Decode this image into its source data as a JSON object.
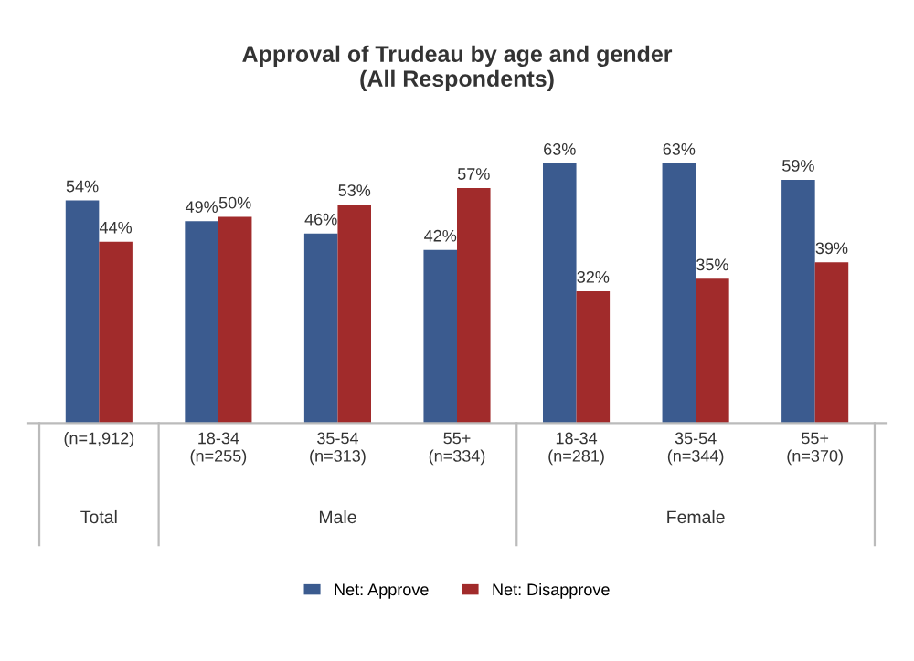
{
  "chart_data": {
    "type": "bar",
    "title": "Approval of Trudeau by age and gender\n(All Respondents)",
    "categories": [
      "(n=1,912)",
      "18-34\n(n=255)",
      "35-54\n(n=313)",
      "55+\n(n=334)",
      "18-34\n(n=281)",
      "35-54\n(n=344)",
      "55+\n(n=370)"
    ],
    "series": [
      {
        "name": "Net: Approve",
        "color": "#3b5b8f",
        "values": [
          54,
          49,
          46,
          42,
          63,
          63,
          59
        ],
        "value_labels": [
          "54%",
          "49%",
          "46%",
          "42%",
          "63%",
          "63%",
          "59%"
        ]
      },
      {
        "name": "Net: Disapprove",
        "color": "#a12b2b",
        "values": [
          44,
          50,
          53,
          57,
          32,
          35,
          39
        ],
        "value_labels": [
          "44%",
          "50%",
          "53%",
          "57%",
          "32%",
          "35%",
          "39%"
        ]
      }
    ],
    "annotations": [
      "Total",
      "Male",
      "Female"
    ],
    "legend": "bottom"
  }
}
